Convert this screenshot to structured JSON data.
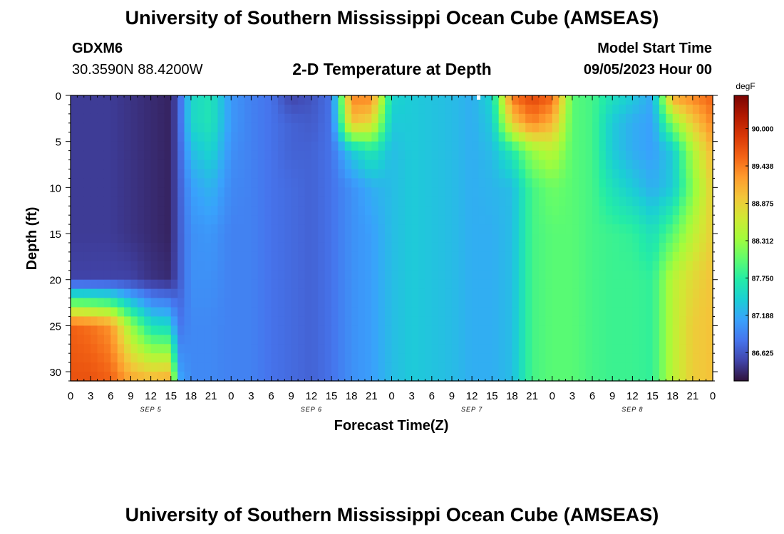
{
  "header": {
    "title": "University of Southern Mississippi Ocean Cube (AMSEAS)",
    "station_id": "GDXM6",
    "coords": "30.3590N  88.4200W",
    "chart_title": "2-D Temperature at Depth",
    "model_start_label": "Model Start Time",
    "model_start_value": "09/05/2023 Hour 00"
  },
  "footer": {
    "title": "University of Southern Mississippi Ocean Cube (AMSEAS)"
  },
  "chart_data": {
    "type": "heatmap",
    "title": "2-D Temperature at Depth",
    "xlabel": "Forecast Time(Z)",
    "ylabel": "Depth (ft)",
    "x_hours_range": [
      0,
      96
    ],
    "x_tick_labels": [
      "0",
      "3",
      "6",
      "9",
      "12",
      "15",
      "18",
      "21",
      "0",
      "3",
      "6",
      "9",
      "12",
      "15",
      "18",
      "21",
      "0",
      "3",
      "6",
      "9",
      "12",
      "15",
      "18",
      "21",
      "0",
      "3",
      "6",
      "9",
      "12",
      "15",
      "18",
      "21",
      "0"
    ],
    "day_labels": [
      "SEP 5",
      "SEP 6",
      "SEP 7",
      "SEP 8"
    ],
    "y_ticks": [
      0,
      5,
      10,
      15,
      20,
      25,
      30
    ],
    "ylim": [
      0,
      31
    ],
    "colorbar": {
      "unit": "degF",
      "tick_labels": [
        "90.000",
        "89.438",
        "88.875",
        "88.312",
        "87.750",
        "87.188",
        "86.625"
      ],
      "tick_values": [
        90.0,
        89.438,
        88.875,
        88.312,
        87.75,
        87.188,
        86.625
      ],
      "range": [
        86.2,
        90.5
      ],
      "colors": [
        "#30123b",
        "#4145ab",
        "#4675ed",
        "#39a2fc",
        "#1bcfd4",
        "#24eca6",
        "#61fc6c",
        "#a4fc3b",
        "#d1e834",
        "#f3c63a",
        "#fe9b2d",
        "#f36315",
        "#d93806",
        "#b11901",
        "#7a0403"
      ]
    },
    "depth_levels_ft": [
      0,
      3,
      6,
      10,
      15,
      20,
      25,
      31
    ],
    "series": [
      {
        "hour": 0,
        "temps": [
          86.45,
          86.45,
          86.45,
          86.45,
          86.45,
          86.5,
          89.6,
          89.7
        ]
      },
      {
        "hour": 3,
        "temps": [
          86.45,
          86.45,
          86.45,
          86.45,
          86.45,
          86.5,
          89.5,
          89.7
        ]
      },
      {
        "hour": 6,
        "temps": [
          86.45,
          86.45,
          86.45,
          86.45,
          86.45,
          86.5,
          89.3,
          89.6
        ]
      },
      {
        "hour": 9,
        "temps": [
          86.4,
          86.4,
          86.4,
          86.4,
          86.4,
          86.5,
          88.3,
          89.2
        ]
      },
      {
        "hour": 12,
        "temps": [
          86.35,
          86.35,
          86.35,
          86.35,
          86.35,
          86.4,
          87.6,
          89.1
        ]
      },
      {
        "hour": 15,
        "temps": [
          86.3,
          86.3,
          86.3,
          86.3,
          86.3,
          86.35,
          87.5,
          89.2
        ]
      },
      {
        "hour": 16,
        "temps": [
          86.6,
          86.6,
          86.6,
          86.6,
          86.6,
          86.6,
          86.8,
          87.2
        ]
      },
      {
        "hour": 18,
        "temps": [
          87.5,
          87.5,
          87.3,
          87.1,
          87.0,
          87.0,
          86.95,
          86.95
        ]
      },
      {
        "hour": 21,
        "temps": [
          87.65,
          87.65,
          87.5,
          87.25,
          87.05,
          87.0,
          86.95,
          86.95
        ]
      },
      {
        "hour": 24,
        "temps": [
          87.05,
          87.05,
          87.0,
          86.95,
          86.9,
          86.9,
          86.9,
          86.9
        ]
      },
      {
        "hour": 27,
        "temps": [
          86.9,
          86.9,
          86.9,
          86.9,
          86.9,
          86.9,
          86.9,
          86.9
        ]
      },
      {
        "hour": 30,
        "temps": [
          86.8,
          86.8,
          86.8,
          86.8,
          86.8,
          86.8,
          86.8,
          86.8
        ]
      },
      {
        "hour": 33,
        "temps": [
          86.5,
          86.7,
          86.7,
          86.75,
          86.75,
          86.75,
          86.75,
          86.75
        ]
      },
      {
        "hour": 36,
        "temps": [
          86.6,
          86.65,
          86.7,
          86.7,
          86.7,
          86.7,
          86.7,
          86.7
        ]
      },
      {
        "hour": 39,
        "temps": [
          86.8,
          86.8,
          86.8,
          86.8,
          86.8,
          86.8,
          86.8,
          86.8
        ]
      },
      {
        "hour": 42,
        "temps": [
          89.4,
          89.0,
          87.4,
          87.0,
          87.0,
          87.0,
          87.0,
          87.0
        ]
      },
      {
        "hour": 45,
        "temps": [
          89.4,
          88.8,
          87.7,
          87.2,
          87.1,
          87.1,
          87.1,
          87.1
        ]
      },
      {
        "hour": 48,
        "temps": [
          87.5,
          87.4,
          87.3,
          87.3,
          87.3,
          87.3,
          87.3,
          87.3
        ]
      },
      {
        "hour": 51,
        "temps": [
          87.4,
          87.4,
          87.4,
          87.4,
          87.4,
          87.4,
          87.4,
          87.4
        ]
      },
      {
        "hour": 54,
        "temps": [
          87.35,
          87.35,
          87.35,
          87.35,
          87.35,
          87.35,
          87.35,
          87.35
        ]
      },
      {
        "hour": 57,
        "temps": [
          87.3,
          87.3,
          87.3,
          87.3,
          87.3,
          87.3,
          87.3,
          87.3
        ]
      },
      {
        "hour": 60,
        "temps": [
          87.2,
          87.2,
          87.2,
          87.2,
          87.2,
          87.2,
          87.2,
          87.2
        ]
      },
      {
        "hour": 63,
        "temps": [
          87.5,
          87.4,
          87.3,
          87.25,
          87.2,
          87.2,
          87.2,
          87.2
        ]
      },
      {
        "hour": 66,
        "temps": [
          89.5,
          88.9,
          87.7,
          87.3,
          87.3,
          87.3,
          87.3,
          87.3
        ]
      },
      {
        "hour": 69,
        "temps": [
          89.8,
          89.4,
          88.3,
          87.9,
          87.9,
          87.9,
          87.9,
          87.9
        ]
      },
      {
        "hour": 72,
        "temps": [
          89.6,
          89.1,
          88.5,
          88.1,
          88.0,
          88.0,
          88.0,
          88.0
        ]
      },
      {
        "hour": 75,
        "temps": [
          88.0,
          88.0,
          88.0,
          88.0,
          88.0,
          88.0,
          88.0,
          88.0
        ]
      },
      {
        "hour": 78,
        "temps": [
          87.9,
          87.9,
          87.9,
          87.9,
          87.9,
          87.9,
          87.9,
          87.9
        ]
      },
      {
        "hour": 81,
        "temps": [
          87.6,
          87.4,
          87.4,
          87.6,
          87.85,
          87.85,
          87.85,
          87.85
        ]
      },
      {
        "hour": 84,
        "temps": [
          87.4,
          87.2,
          87.2,
          87.4,
          87.8,
          87.85,
          87.85,
          87.85
        ]
      },
      {
        "hour": 87,
        "temps": [
          87.15,
          87.1,
          87.1,
          87.2,
          87.6,
          87.8,
          87.8,
          87.8
        ]
      },
      {
        "hour": 90,
        "temps": [
          89.2,
          88.2,
          87.4,
          87.4,
          88.0,
          88.5,
          88.5,
          88.5
        ]
      },
      {
        "hour": 93,
        "temps": [
          89.4,
          88.9,
          88.4,
          88.2,
          88.5,
          88.8,
          88.9,
          88.9
        ]
      },
      {
        "hour": 96,
        "temps": [
          89.6,
          89.4,
          89.1,
          88.9,
          88.9,
          89.0,
          89.0,
          89.0
        ]
      }
    ],
    "marker": {
      "hour": 61,
      "depth_ft": 0
    }
  }
}
